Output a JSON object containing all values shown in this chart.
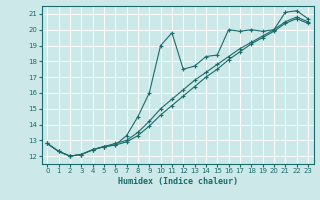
{
  "title": "",
  "xlabel": "Humidex (Indice chaleur)",
  "ylabel": "",
  "background_color": "#cce8e8",
  "grid_color": "#b8d8d8",
  "line_color": "#1a6b6b",
  "xlim": [
    -0.5,
    23.5
  ],
  "ylim": [
    11.5,
    21.5
  ],
  "xticks": [
    0,
    1,
    2,
    3,
    4,
    5,
    6,
    7,
    8,
    9,
    10,
    11,
    12,
    13,
    14,
    15,
    16,
    17,
    18,
    19,
    20,
    21,
    22,
    23
  ],
  "yticks": [
    12,
    13,
    14,
    15,
    16,
    17,
    18,
    19,
    20,
    21
  ],
  "line1_x": [
    0,
    1,
    2,
    3,
    4,
    5,
    6,
    7,
    8,
    9,
    10,
    11,
    12,
    13,
    14,
    15,
    16,
    17,
    18,
    19,
    20,
    21,
    22,
    23
  ],
  "line1_y": [
    12.8,
    12.3,
    12.0,
    12.1,
    12.4,
    12.6,
    12.7,
    13.3,
    14.5,
    16.0,
    19.0,
    19.8,
    17.5,
    17.7,
    18.3,
    18.4,
    20.0,
    19.9,
    20.0,
    19.9,
    20.0,
    21.1,
    21.2,
    20.7
  ],
  "line2_x": [
    0,
    1,
    2,
    3,
    4,
    5,
    6,
    7,
    8,
    9,
    10,
    11,
    12,
    13,
    14,
    15,
    16,
    17,
    18,
    19,
    20,
    21,
    22,
    23
  ],
  "line2_y": [
    12.8,
    12.3,
    12.0,
    12.1,
    12.4,
    12.6,
    12.8,
    13.0,
    13.5,
    14.2,
    15.0,
    15.6,
    16.2,
    16.8,
    17.3,
    17.8,
    18.3,
    18.8,
    19.2,
    19.6,
    20.0,
    20.5,
    20.8,
    20.5
  ],
  "line3_x": [
    0,
    1,
    2,
    3,
    4,
    5,
    6,
    7,
    8,
    9,
    10,
    11,
    12,
    13,
    14,
    15,
    16,
    17,
    18,
    19,
    20,
    21,
    22,
    23
  ],
  "line3_y": [
    12.8,
    12.3,
    12.0,
    12.1,
    12.4,
    12.6,
    12.7,
    12.9,
    13.3,
    13.9,
    14.6,
    15.2,
    15.8,
    16.4,
    17.0,
    17.5,
    18.1,
    18.6,
    19.1,
    19.5,
    19.9,
    20.4,
    20.7,
    20.4
  ]
}
